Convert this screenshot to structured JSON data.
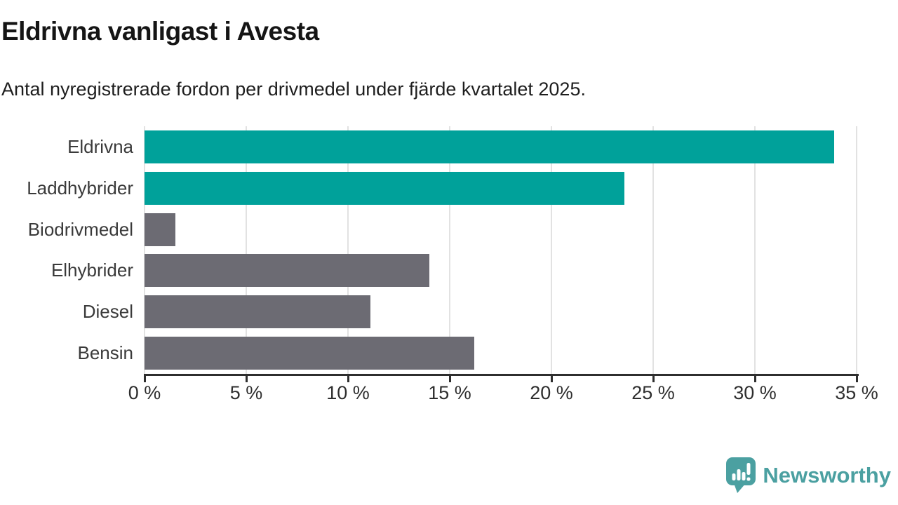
{
  "chart": {
    "title": "Eldrivna vanligast i Avesta",
    "subtitle": "Antal nyregistrerade fordon per drivmedel under fjärde kvartalet 2025."
  },
  "chart_data": {
    "type": "bar",
    "orientation": "horizontal",
    "title": "Eldrivna vanligast i Avesta",
    "subtitle": "Antal nyregistrerade fordon per drivmedel under fjärde kvartalet 2025.",
    "categories": [
      "Eldrivna",
      "Laddhybrider",
      "Biodrivmedel",
      "Elhybrider",
      "Diesel",
      "Bensin"
    ],
    "values": [
      33.9,
      23.6,
      1.5,
      14.0,
      11.1,
      16.2
    ],
    "unit": "%",
    "bar_colors": [
      "#00a19a",
      "#00a19a",
      "#6c6b73",
      "#6c6b73",
      "#6c6b73",
      "#6c6b73"
    ],
    "highlight_color": "#00a19a",
    "default_color": "#6c6b73",
    "xlabel": "",
    "ylabel": "",
    "xlim": [
      0,
      35
    ],
    "x_ticks": [
      "0 %",
      "5 %",
      "10 %",
      "15 %",
      "20 %",
      "25 %",
      "30 %",
      "35 %"
    ],
    "grid": "vertical",
    "legend": "none"
  },
  "footer": {
    "brand": "Newsworthy",
    "brand_color": "#4ba0a1"
  }
}
